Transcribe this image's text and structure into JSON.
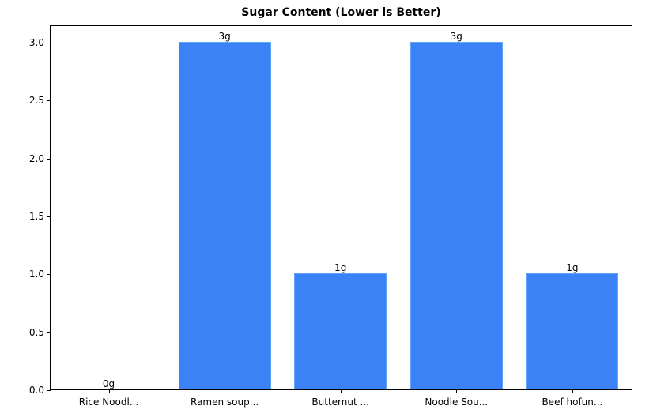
{
  "chart_data": {
    "type": "bar",
    "title": "Sugar Content (Lower is Better)",
    "xlabel": "",
    "ylabel": "",
    "categories": [
      "Rice Noodl...",
      "Ramen soup...",
      "Butternut ...",
      "Noodle Sou...",
      "Beef hofun..."
    ],
    "values": [
      0,
      3,
      1,
      3,
      1
    ],
    "value_labels": [
      "0g",
      "3g",
      "1g",
      "3g",
      "1g"
    ],
    "ylim": [
      0,
      3.15
    ],
    "yticks": [
      "0.0",
      "0.5",
      "1.0",
      "1.5",
      "2.0",
      "2.5",
      "3.0"
    ],
    "grid": false,
    "bar_color": "#3b82f6",
    "bar_edge_color": "#60a5fa"
  }
}
